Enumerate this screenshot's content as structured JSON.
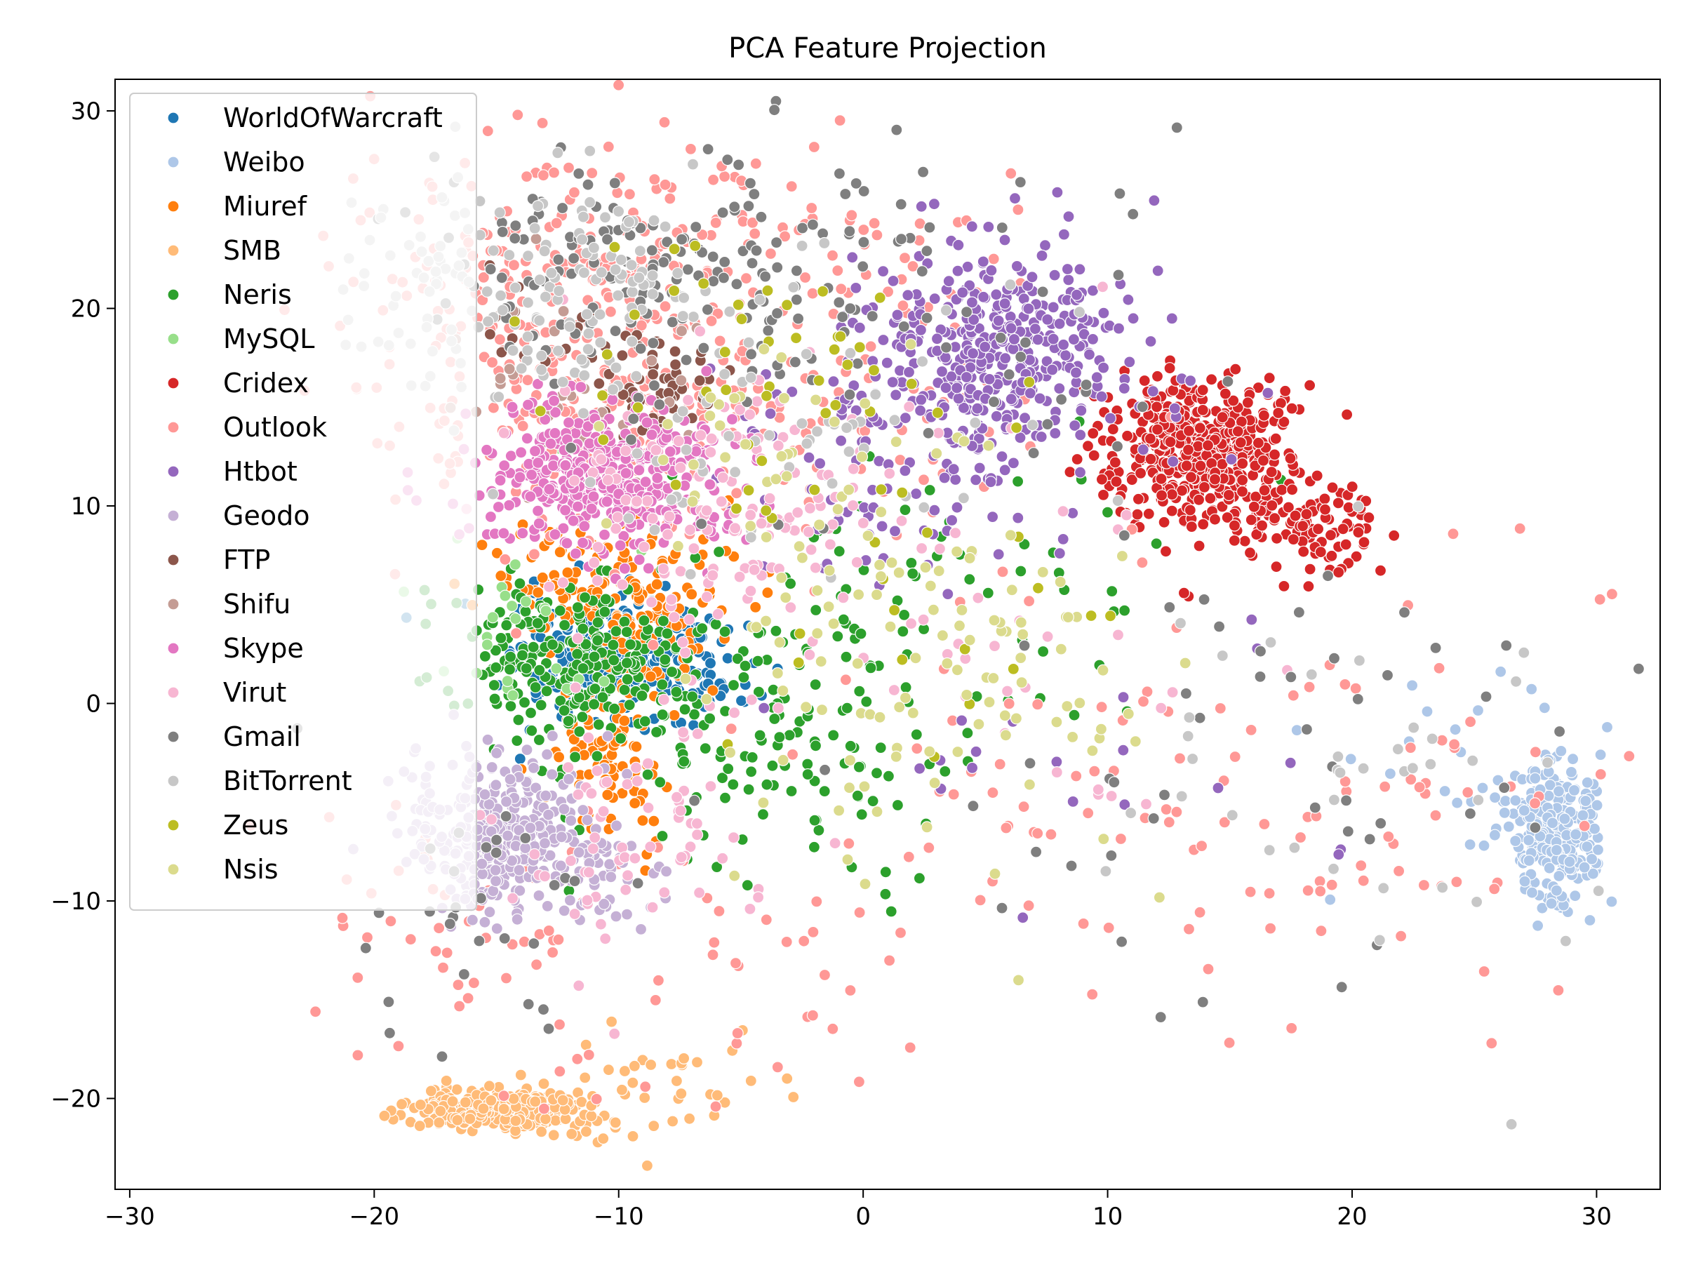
{
  "chart_data": {
    "type": "scatter",
    "title": "PCA Feature Projection",
    "xlabel": "",
    "ylabel": "",
    "xlim": [
      -30.6,
      32.6
    ],
    "ylim": [
      -24.6,
      31.6
    ],
    "xticks": [
      -30,
      -20,
      -10,
      0,
      10,
      20,
      30
    ],
    "yticks": [
      -20,
      -10,
      0,
      10,
      20,
      30
    ],
    "xtick_labels": [
      "−30",
      "−20",
      "−10",
      "0",
      "10",
      "20",
      "30"
    ],
    "ytick_labels": [
      "−20",
      "−10",
      "0",
      "10",
      "20",
      "30"
    ],
    "grid": false,
    "legend_position": "top-left",
    "series": [
      {
        "name": "WorldOfWarcraft",
        "color": "#1f77b4",
        "clusters": [
          {
            "cx": -9.5,
            "cy": 2.0,
            "sx": 2.3,
            "sy": 1.6,
            "n": 260
          }
        ]
      },
      {
        "name": "Weibo",
        "color": "#aec7e8",
        "clusters": [
          {
            "cx": 28.2,
            "cy": -6.5,
            "sx": 0.9,
            "sy": 1.9,
            "n": 260
          },
          {
            "cx": 24.0,
            "cy": -4.0,
            "sx": 4.0,
            "sy": 4.0,
            "n": 25
          }
        ]
      },
      {
        "name": "Miuref",
        "color": "#ff7f0e",
        "clusters": [
          {
            "cx": -9.5,
            "cy": 5.0,
            "sx": 1.8,
            "sy": 1.8,
            "n": 150
          },
          {
            "cx": -10.5,
            "cy": -3.0,
            "sx": 1.2,
            "sy": 2.2,
            "n": 90
          },
          {
            "cx": -13.0,
            "cy": 7.0,
            "sx": 1.5,
            "sy": 1.5,
            "n": 40
          }
        ]
      },
      {
        "name": "SMB",
        "color": "#ffbb78",
        "clusters": [
          {
            "cx": -14.5,
            "cy": -20.5,
            "sx": 1.8,
            "sy": 0.6,
            "n": 260
          },
          {
            "cx": -8.0,
            "cy": -19.5,
            "sx": 3.0,
            "sy": 1.5,
            "n": 35
          }
        ]
      },
      {
        "name": "Neris",
        "color": "#2ca02c",
        "clusters": [
          {
            "cx": -12.0,
            "cy": 2.5,
            "sx": 2.5,
            "sy": 2.0,
            "n": 230
          },
          {
            "cx": -4.0,
            "cy": -2.0,
            "sx": 4.0,
            "sy": 4.0,
            "n": 140
          },
          {
            "cx": 3.0,
            "cy": 6.0,
            "sx": 5.0,
            "sy": 5.0,
            "n": 60
          }
        ]
      },
      {
        "name": "MySQL",
        "color": "#98df8a",
        "clusters": [
          {
            "cx": -14.0,
            "cy": 4.0,
            "sx": 2.5,
            "sy": 3.0,
            "n": 25
          }
        ]
      },
      {
        "name": "Cridex",
        "color": "#d62728",
        "clusters": [
          {
            "cx": 13.8,
            "cy": 12.8,
            "sx": 1.8,
            "sy": 1.8,
            "n": 500
          },
          {
            "cx": 18.5,
            "cy": 9.0,
            "sx": 1.6,
            "sy": 1.2,
            "n": 90
          }
        ]
      },
      {
        "name": "Outlook",
        "color": "#ff9896",
        "clusters": [
          {
            "cx": -11.0,
            "cy": 19.0,
            "sx": 5.0,
            "sy": 5.0,
            "n": 420
          },
          {
            "cx": 0.0,
            "cy": 16.0,
            "sx": 5.0,
            "sy": 5.0,
            "n": 90
          },
          {
            "cx": 16.0,
            "cy": -4.0,
            "sx": 8.0,
            "sy": 5.0,
            "n": 120
          },
          {
            "cx": -17.0,
            "cy": -10.0,
            "sx": 3.0,
            "sy": 4.0,
            "n": 50
          },
          {
            "cx": -6.0,
            "cy": -14.0,
            "sx": 4.0,
            "sy": 4.0,
            "n": 40
          }
        ]
      },
      {
        "name": "Htbot",
        "color": "#9467bd",
        "clusters": [
          {
            "cx": 5.5,
            "cy": 17.5,
            "sx": 2.8,
            "sy": 2.8,
            "n": 380
          },
          {
            "cx": 2.0,
            "cy": 12.0,
            "sx": 3.5,
            "sy": 3.5,
            "n": 90
          },
          {
            "cx": 10.0,
            "cy": -3.0,
            "sx": 7.0,
            "sy": 4.0,
            "n": 20
          }
        ]
      },
      {
        "name": "Geodo",
        "color": "#c5b0d5",
        "clusters": [
          {
            "cx": -15.0,
            "cy": -6.5,
            "sx": 1.9,
            "sy": 2.0,
            "n": 340
          },
          {
            "cx": -10.0,
            "cy": -9.0,
            "sx": 1.5,
            "sy": 1.2,
            "n": 40
          }
        ]
      },
      {
        "name": "FTP",
        "color": "#8c564b",
        "clusters": [
          {
            "cx": -8.5,
            "cy": 16.0,
            "sx": 1.3,
            "sy": 1.2,
            "n": 50
          },
          {
            "cx": -12.0,
            "cy": 19.0,
            "sx": 2.0,
            "sy": 1.5,
            "n": 20
          }
        ]
      },
      {
        "name": "Shifu",
        "color": "#c49c94",
        "clusters": [
          {
            "cx": -12.0,
            "cy": 17.0,
            "sx": 3.0,
            "sy": 3.0,
            "n": 35
          }
        ]
      },
      {
        "name": "Skype",
        "color": "#e377c2",
        "clusters": [
          {
            "cx": -10.5,
            "cy": 11.5,
            "sx": 2.6,
            "sy": 1.9,
            "n": 420
          }
        ]
      },
      {
        "name": "Virut",
        "color": "#f7b6d2",
        "clusters": [
          {
            "cx": -6.0,
            "cy": 10.0,
            "sx": 3.5,
            "sy": 3.5,
            "n": 140
          },
          {
            "cx": -9.0,
            "cy": -6.0,
            "sx": 3.0,
            "sy": 3.0,
            "n": 70
          },
          {
            "cx": 5.0,
            "cy": 3.0,
            "sx": 6.0,
            "sy": 5.0,
            "n": 40
          }
        ]
      },
      {
        "name": "Gmail",
        "color": "#7f7f7f",
        "clusters": [
          {
            "cx": -8.0,
            "cy": 22.0,
            "sx": 5.0,
            "sy": 3.0,
            "n": 170
          },
          {
            "cx": 3.0,
            "cy": 18.0,
            "sx": 6.0,
            "sy": 5.0,
            "n": 40
          },
          {
            "cx": 15.0,
            "cy": -4.0,
            "sx": 8.0,
            "sy": 6.0,
            "n": 50
          },
          {
            "cx": -16.0,
            "cy": -11.0,
            "sx": 3.0,
            "sy": 4.0,
            "n": 30
          }
        ]
      },
      {
        "name": "BitTorrent",
        "color": "#c7c7c7",
        "clusters": [
          {
            "cx": -14.0,
            "cy": 21.0,
            "sx": 4.0,
            "sy": 3.0,
            "n": 160
          },
          {
            "cx": -4.0,
            "cy": 15.0,
            "sx": 5.0,
            "sy": 4.0,
            "n": 70
          },
          {
            "cx": 20.0,
            "cy": -4.0,
            "sx": 6.0,
            "sy": 5.0,
            "n": 40
          }
        ]
      },
      {
        "name": "Zeus",
        "color": "#bcbd22",
        "clusters": [
          {
            "cx": -4.0,
            "cy": 17.0,
            "sx": 4.0,
            "sy": 4.0,
            "n": 45
          },
          {
            "cx": 4.0,
            "cy": 7.0,
            "sx": 5.0,
            "sy": 5.0,
            "n": 20
          }
        ]
      },
      {
        "name": "Nsis",
        "color": "#dbdb8d",
        "clusters": [
          {
            "cx": 3.0,
            "cy": 2.0,
            "sx": 5.0,
            "sy": 5.0,
            "n": 110
          },
          {
            "cx": -4.0,
            "cy": 13.0,
            "sx": 4.0,
            "sy": 4.0,
            "n": 40
          }
        ]
      }
    ]
  }
}
